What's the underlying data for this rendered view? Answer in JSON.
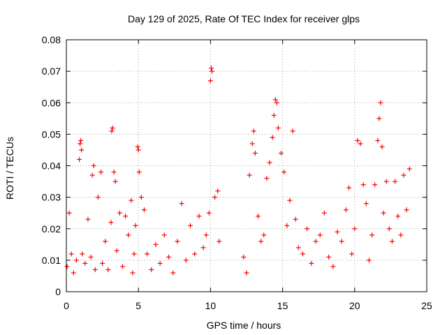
{
  "chart_data": {
    "type": "scatter",
    "title": "Day 129 of 2025, Rate Of TEC Index for receiver glps",
    "xlabel": "GPS time / hours",
    "ylabel": "ROTI / TECUs",
    "xlim": [
      0,
      25
    ],
    "ylim": [
      0,
      0.08
    ],
    "xticks": [
      0,
      5,
      10,
      15,
      20,
      25
    ],
    "xtick_labels": [
      "0",
      "5",
      "10",
      "15",
      "20",
      "25"
    ],
    "yticks": [
      0,
      0.01,
      0.02,
      0.03,
      0.04,
      0.05,
      0.06,
      0.07,
      0.08
    ],
    "ytick_labels": [
      "0",
      "0.01",
      "0.02",
      "0.03",
      "0.04",
      "0.05",
      "0.06",
      "0.07",
      "0.08"
    ],
    "grid": true,
    "marker": "+",
    "color": "#ff0000",
    "x": [
      0.05,
      0.2,
      0.35,
      0.5,
      0.7,
      0.9,
      0.95,
      1.0,
      1.05,
      1.1,
      1.3,
      1.5,
      1.7,
      1.8,
      1.9,
      2.0,
      2.2,
      2.4,
      2.5,
      2.7,
      2.9,
      3.1,
      3.15,
      3.2,
      3.3,
      3.4,
      3.5,
      3.7,
      3.9,
      4.1,
      4.3,
      4.5,
      4.6,
      4.7,
      4.8,
      4.95,
      5.0,
      5.05,
      5.2,
      5.4,
      5.6,
      5.9,
      6.2,
      6.5,
      6.8,
      7.1,
      7.4,
      7.7,
      8.0,
      8.3,
      8.6,
      8.9,
      9.2,
      9.5,
      9.7,
      9.9,
      10.0,
      10.05,
      10.1,
      10.3,
      10.5,
      10.6,
      12.3,
      12.5,
      12.7,
      12.9,
      13.0,
      13.1,
      13.3,
      13.5,
      13.7,
      13.9,
      14.1,
      14.3,
      14.4,
      14.5,
      14.6,
      14.7,
      14.9,
      15.1,
      15.3,
      15.5,
      15.7,
      15.9,
      16.1,
      16.4,
      16.7,
      17.0,
      17.3,
      17.6,
      17.9,
      18.2,
      18.5,
      18.8,
      19.1,
      19.4,
      19.6,
      19.8,
      20.0,
      20.2,
      20.4,
      20.6,
      20.8,
      21.0,
      21.2,
      21.4,
      21.6,
      21.7,
      21.8,
      21.9,
      22.0,
      22.2,
      22.4,
      22.6,
      22.8,
      23.0,
      23.2,
      23.4,
      23.6,
      23.8
    ],
    "y": [
      0.008,
      0.025,
      0.012,
      0.006,
      0.01,
      0.042,
      0.047,
      0.048,
      0.045,
      0.012,
      0.009,
      0.023,
      0.011,
      0.037,
      0.04,
      0.007,
      0.03,
      0.038,
      0.009,
      0.016,
      0.007,
      0.022,
      0.051,
      0.052,
      0.038,
      0.035,
      0.013,
      0.025,
      0.008,
      0.024,
      0.018,
      0.029,
      0.006,
      0.012,
      0.021,
      0.046,
      0.045,
      0.038,
      0.03,
      0.026,
      0.012,
      0.007,
      0.015,
      0.009,
      0.018,
      0.011,
      0.006,
      0.016,
      0.028,
      0.01,
      0.021,
      0.012,
      0.024,
      0.014,
      0.018,
      0.025,
      0.067,
      0.071,
      0.07,
      0.03,
      0.032,
      0.016,
      0.011,
      0.006,
      0.037,
      0.047,
      0.051,
      0.044,
      0.024,
      0.016,
      0.018,
      0.036,
      0.041,
      0.049,
      0.056,
      0.061,
      0.06,
      0.052,
      0.044,
      0.038,
      0.021,
      0.029,
      0.051,
      0.023,
      0.014,
      0.012,
      0.02,
      0.009,
      0.016,
      0.018,
      0.025,
      0.011,
      0.008,
      0.019,
      0.016,
      0.026,
      0.033,
      0.012,
      0.02,
      0.048,
      0.047,
      0.034,
      0.028,
      0.01,
      0.018,
      0.034,
      0.048,
      0.055,
      0.06,
      0.046,
      0.025,
      0.035,
      0.02,
      0.016,
      0.035,
      0.024,
      0.018,
      0.037,
      0.026,
      0.039
    ]
  }
}
